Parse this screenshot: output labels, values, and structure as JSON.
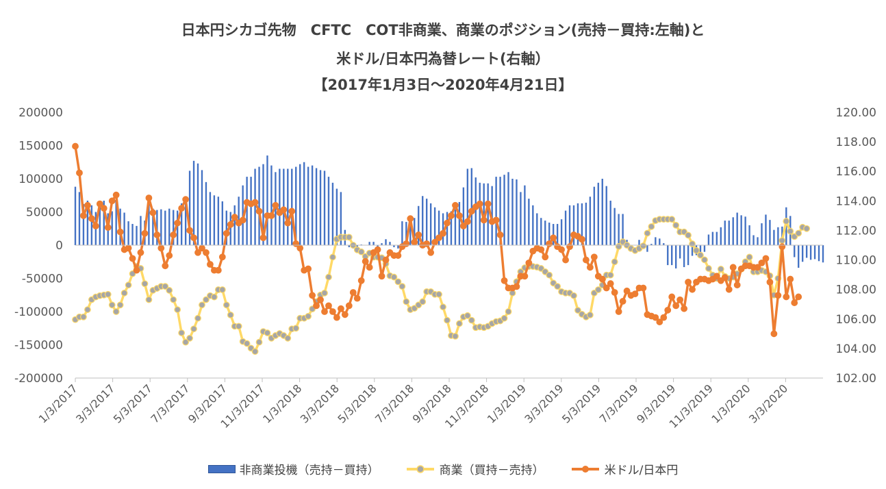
{
  "title_lines": [
    "日本円シカゴ先物　CFTC　COT非商業、商業のポジション(売持－買持:左軸)と",
    "米ドル/日本円為替レート(右軸）",
    "【2017年1月3日～2020年4月21日】"
  ],
  "chart_data": {
    "type": "bar+line",
    "title": "日本円シカゴ先物　CFTC　COT非商業、商業のポジション(売持－買持:左軸)と 米ドル/日本円為替レート(右軸） 【2017年1月3日～2020年4月21日】",
    "x_ticks": [
      "1/3/2017",
      "3/3/2017",
      "5/3/2017",
      "7/3/2017",
      "9/3/2017",
      "11/3/2017",
      "1/3/2018",
      "3/3/2018",
      "5/3/2018",
      "7/3/2018",
      "9/3/2018",
      "11/3/2018",
      "1/3/2019",
      "3/3/2019",
      "5/3/2019",
      "7/3/2019",
      "9/3/2019",
      "11/3/2019",
      "1/3/2020",
      "3/3/2020"
    ],
    "x_range": [
      "1/3/2017",
      "4/21/2020"
    ],
    "y_left": {
      "range": [
        -200000,
        200000
      ],
      "ticks": [
        "200000",
        "150000",
        "100000",
        "50000",
        "0",
        "-50000",
        "-100000",
        "-150000",
        "-200000"
      ]
    },
    "y_right": {
      "range": [
        102,
        120
      ],
      "ticks": [
        "120.00",
        "118.00",
        "116.00",
        "114.00",
        "112.00",
        "110.00",
        "108.00",
        "106.00",
        "104.00",
        "102.00"
      ]
    },
    "series": [
      {
        "name": "非商業投機（売持－買持）",
        "type": "bar",
        "axis": "left",
        "color": "#4472c4",
        "values": [
          88000,
          80000,
          62000,
          67000,
          60000,
          50000,
          58000,
          67000,
          48000,
          51000,
          68000,
          55000,
          49000,
          36000,
          32000,
          29000,
          44000,
          37000,
          62000,
          55000,
          53000,
          54000,
          52000,
          55000,
          53000,
          52000,
          63000,
          65000,
          112000,
          127000,
          123000,
          113000,
          95000,
          80000,
          75000,
          73000,
          66000,
          52000,
          50000,
          60000,
          73000,
          90000,
          103000,
          103000,
          115000,
          118000,
          122000,
          135000,
          120000,
          110000,
          115000,
          115000,
          115000,
          115000,
          118000,
          122000,
          125000,
          118000,
          120000,
          116000,
          113000,
          112000,
          103000,
          94000,
          85000,
          80000,
          23000,
          -3000,
          -5000,
          -4000,
          1000,
          0,
          5000,
          5000,
          -5000,
          3000,
          9000,
          5000,
          -3000,
          -5000,
          36000,
          35000,
          39000,
          41000,
          59000,
          74000,
          70000,
          63000,
          57000,
          52000,
          48000,
          50000,
          51000,
          54000,
          65000,
          87000,
          115000,
          116000,
          102000,
          94000,
          93000,
          93000,
          89000,
          103000,
          103000,
          106000,
          110000,
          100000,
          99000,
          80000,
          90000,
          70000,
          60000,
          48000,
          41000,
          37000,
          34000,
          32000,
          32000,
          39000,
          52000,
          60000,
          60000,
          63000,
          63000,
          64000,
          73000,
          88000,
          94000,
          100000,
          89000,
          67000,
          56000,
          47000,
          47000,
          8000,
          0,
          0,
          8000,
          -3000,
          -10000,
          2000,
          12000,
          10000,
          3000,
          -30000,
          -30000,
          -35000,
          -20000,
          -33000,
          -30000,
          -16000,
          -15000,
          -14000,
          -10000,
          16000,
          20000,
          20000,
          27000,
          37000,
          37000,
          42000,
          49000,
          45000,
          43000,
          30000,
          15000,
          12000,
          33000,
          46000,
          38000,
          23000,
          27000,
          28000,
          57000,
          44000,
          -18000,
          -34000,
          -25000,
          -19000,
          -22000,
          -21000,
          -24000,
          -26000
        ]
      },
      {
        "name": "商業（買持－売持）",
        "type": "line",
        "axis": "left",
        "color": "#ffd966",
        "values": [
          -112000,
          -108000,
          -108000,
          -97000,
          -82000,
          -78000,
          -76000,
          -75000,
          -74000,
          -90000,
          -100000,
          -90000,
          -72000,
          -60000,
          -43000,
          -32000,
          -35000,
          -58000,
          -82000,
          -68000,
          -65000,
          -62000,
          -62000,
          -68000,
          -82000,
          -97000,
          -132000,
          -146000,
          -140000,
          -126000,
          -110000,
          -90000,
          -82000,
          -76000,
          -78000,
          -67000,
          -67000,
          -90000,
          -105000,
          -122000,
          -122000,
          -145000,
          -148000,
          -155000,
          -160000,
          -146000,
          -130000,
          -132000,
          -140000,
          -136000,
          -133000,
          -136000,
          -140000,
          -126000,
          -125000,
          -110000,
          -110000,
          -107000,
          -96000,
          -85000,
          -75000,
          -72000,
          -48000,
          -18000,
          9000,
          12000,
          12000,
          12000,
          0,
          -7000,
          -10000,
          -17000,
          -12000,
          -18000,
          -18000,
          -19000,
          -28000,
          -46000,
          -48000,
          -55000,
          -62000,
          -85000,
          -97000,
          -95000,
          -90000,
          -85000,
          -70000,
          -70000,
          -74000,
          -74000,
          -93000,
          -113000,
          -136000,
          -137000,
          -118000,
          -108000,
          -106000,
          -113000,
          -124000,
          -123000,
          -124000,
          -122000,
          -118000,
          -115000,
          -114000,
          -110000,
          -100000,
          -72000,
          -55000,
          -40000,
          -34000,
          -32000,
          -32000,
          -33000,
          -35000,
          -40000,
          -45000,
          -57000,
          -62000,
          -70000,
          -72000,
          -72000,
          -76000,
          -98000,
          -104000,
          -108000,
          -105000,
          -72000,
          -67000,
          -60000,
          -45000,
          -45000,
          -25000,
          -2000,
          5000,
          0,
          -5000,
          -8000,
          -5000,
          -1000,
          18000,
          28000,
          37000,
          39000,
          39000,
          39000,
          39000,
          30000,
          20000,
          20000,
          15000,
          2000,
          -8000,
          -15000,
          -22000,
          -35000,
          -45000,
          -50000,
          -36000,
          -47000,
          -50000,
          -48000,
          -43000,
          -36000,
          -25000,
          -18000,
          -40000,
          -40000,
          -38000,
          -40000,
          -46000,
          -75000,
          -50000,
          7000,
          36000,
          21000,
          13000,
          18000,
          27000,
          25000
        ]
      },
      {
        "name": "米ドル/日本円",
        "type": "line",
        "axis": "right",
        "color": "#ed7d31",
        "values": [
          117.7,
          115.9,
          113.0,
          113.7,
          112.8,
          112.3,
          113.8,
          113.5,
          112.2,
          114.0,
          114.4,
          111.9,
          110.7,
          110.8,
          110.1,
          109.3,
          110.5,
          111.8,
          114.2,
          113.2,
          111.7,
          110.8,
          109.6,
          110.3,
          111.7,
          112.5,
          113.5,
          114.1,
          112.0,
          111.5,
          110.5,
          110.8,
          110.5,
          109.7,
          109.3,
          109.3,
          110.2,
          111.8,
          112.4,
          112.9,
          112.5,
          112.7,
          113.9,
          113.8,
          113.9,
          113.3,
          111.5,
          113.0,
          113.0,
          113.7,
          113.2,
          113.4,
          112.5,
          113.3,
          111.1,
          110.8,
          109.3,
          109.4,
          107.6,
          106.9,
          107.3,
          106.5,
          106.9,
          106.5,
          106.1,
          106.7,
          106.3,
          106.9,
          107.8,
          107.4,
          108.6,
          109.9,
          109.5,
          110.5,
          110.7,
          108.9,
          110.0,
          110.5,
          110.3,
          110.3,
          110.9,
          111.1,
          112.8,
          111.2,
          111.7,
          111.0,
          111.1,
          110.5,
          111.2,
          111.5,
          111.8,
          112.5,
          113.0,
          113.7,
          113.0,
          112.3,
          112.6,
          113.3,
          113.6,
          113.8,
          112.7,
          113.8,
          112.6,
          112.7,
          111.7,
          108.6,
          108.1,
          108.1,
          108.2,
          108.9,
          108.9,
          109.8,
          110.6,
          110.8,
          110.7,
          110.2,
          111.1,
          111.5,
          110.9,
          110.7,
          110.0,
          110.9,
          111.7,
          111.6,
          111.4,
          110.0,
          109.5,
          110.2,
          108.9,
          108.7,
          108.1,
          108.4,
          107.8,
          106.5,
          107.2,
          107.9,
          107.6,
          107.7,
          108.1,
          108.1,
          106.3,
          106.2,
          106.1,
          105.8,
          106.1,
          106.6,
          107.5,
          106.9,
          107.3,
          106.7,
          108.5,
          108.0,
          108.5,
          108.7,
          108.7,
          108.6,
          108.7,
          108.9,
          108.6,
          108.8,
          108.0,
          109.5,
          108.3,
          109.4,
          109.6,
          109.6,
          109.5,
          109.5,
          109.8,
          110.1,
          108.5,
          105.0,
          107.6,
          110.9,
          107.5,
          108.7,
          107.1,
          107.5
        ]
      }
    ],
    "legend_position": "bottom",
    "grid": false
  },
  "legend": [
    {
      "label": "非商業投機（売持－買持）",
      "kind": "bar",
      "color": "#4472c4"
    },
    {
      "label": "商業（買持－売持）",
      "kind": "line-marker",
      "color": "#ffd966",
      "marker": "#a6a6a6"
    },
    {
      "label": "米ドル/日本円",
      "kind": "line-marker",
      "color": "#ed7d31",
      "marker": "#ed7d31"
    }
  ]
}
